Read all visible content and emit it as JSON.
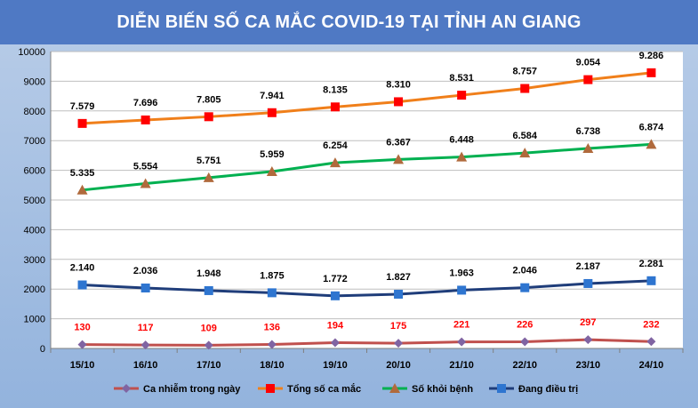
{
  "chart_data": {
    "type": "line",
    "title": "DIỄN BIẾN SỐ CA MẮC COVID-19 TẠI TỈNH AN GIANG",
    "categories": [
      "15/10",
      "16/10",
      "17/10",
      "18/10",
      "19/10",
      "20/10",
      "21/10",
      "22/10",
      "23/10",
      "24/10"
    ],
    "ylim": [
      0,
      10000
    ],
    "yticks": [
      "0",
      "1000",
      "2000",
      "3000",
      "4000",
      "5000",
      "6000",
      "7000",
      "8000",
      "9000",
      "10000"
    ],
    "grid": true,
    "legend_position": "bottom",
    "series": [
      {
        "name": "Ca nhiễm trong ngày",
        "color": "#c0504d",
        "label_color": "#ff0000",
        "marker": "diamond",
        "marker_color": "#8064a2",
        "values": [
          130,
          117,
          109,
          136,
          194,
          175,
          221,
          226,
          297,
          232
        ],
        "labels": [
          "130",
          "117",
          "109",
          "136",
          "194",
          "175",
          "221",
          "226",
          "297",
          "232"
        ]
      },
      {
        "name": "Tổng số ca mắc",
        "color": "#f07f1a",
        "label_color": "#000000",
        "marker": "square",
        "marker_color": "#ff0000",
        "values": [
          7579,
          7696,
          7805,
          7941,
          8135,
          8310,
          8531,
          8757,
          9054,
          9286
        ],
        "labels": [
          "7.579",
          "7.696",
          "7.805",
          "7.941",
          "8.135",
          "8.310",
          "8.531",
          "8.757",
          "9.054",
          "9.286"
        ]
      },
      {
        "name": "Số khỏi bệnh",
        "color": "#00b050",
        "label_color": "#000000",
        "marker": "triangle",
        "marker_color": "#b06a3c",
        "values": [
          5335,
          5554,
          5751,
          5959,
          6254,
          6367,
          6448,
          6584,
          6738,
          6874
        ],
        "labels": [
          "5.335",
          "5.554",
          "5.751",
          "5.959",
          "6.254",
          "6.367",
          "6.448",
          "6.584",
          "6.738",
          "6.874"
        ]
      },
      {
        "name": "Đang điều trị",
        "color": "#1f3d7a",
        "label_color": "#000000",
        "marker": "square",
        "marker_color": "#2e75d0",
        "values": [
          2140,
          2036,
          1948,
          1875,
          1772,
          1827,
          1963,
          2046,
          2187,
          2281
        ],
        "labels": [
          "2.140",
          "2.036",
          "1.948",
          "1.875",
          "1.772",
          "1.827",
          "1.963",
          "2.046",
          "2.187",
          "2.281"
        ]
      }
    ]
  }
}
